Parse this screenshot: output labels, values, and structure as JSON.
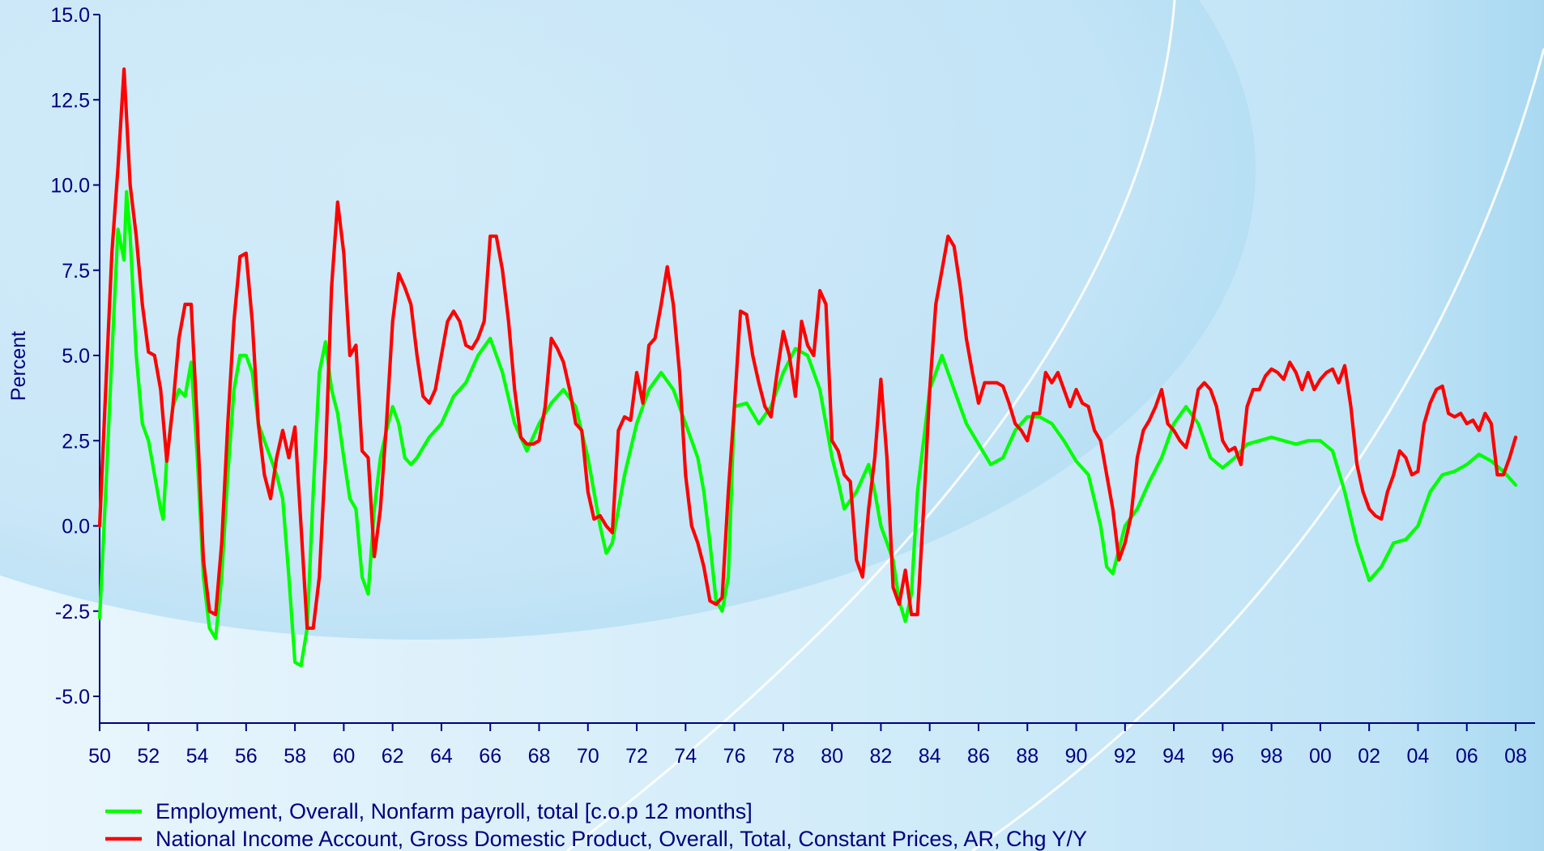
{
  "chart_data": {
    "type": "line",
    "title": "",
    "xlabel": "",
    "ylabel": "Percent",
    "xlim": [
      1950,
      2009
    ],
    "ylim": [
      -5.5,
      15.0
    ],
    "y_ticks": [
      -5.0,
      -2.5,
      0.0,
      2.5,
      5.0,
      7.5,
      10.0,
      12.5,
      15.0
    ],
    "y_tick_labels": [
      "-5.0",
      "-2.5",
      "0.0",
      "2.5",
      "5.0",
      "7.5",
      "10.0",
      "12.5",
      "15.0"
    ],
    "x_ticks": [
      1950,
      1952,
      1954,
      1956,
      1958,
      1960,
      1962,
      1964,
      1966,
      1968,
      1970,
      1972,
      1974,
      1976,
      1978,
      1980,
      1982,
      1984,
      1986,
      1988,
      1990,
      1992,
      1994,
      1996,
      1998,
      2000,
      2002,
      2004,
      2006,
      2008
    ],
    "x_tick_labels": [
      "50",
      "52",
      "54",
      "56",
      "58",
      "60",
      "62",
      "64",
      "66",
      "68",
      "70",
      "72",
      "74",
      "76",
      "78",
      "80",
      "82",
      "84",
      "86",
      "88",
      "90",
      "92",
      "94",
      "96",
      "98",
      "00",
      "02",
      "04",
      "06",
      "08"
    ],
    "grid": false,
    "legend_position": "bottom-left",
    "series": [
      {
        "name": "Employment, Overall, Nonfarm payroll, total [c.o.p 12 months]",
        "color": "#00ff00",
        "x": [
          1950.0,
          1950.25,
          1950.5,
          1950.75,
          1951.0,
          1951.1,
          1951.25,
          1951.5,
          1951.75,
          1952.0,
          1952.25,
          1952.5,
          1952.6,
          1952.75,
          1953.0,
          1953.25,
          1953.5,
          1953.75,
          1954.0,
          1954.25,
          1954.5,
          1954.75,
          1955.0,
          1955.25,
          1955.5,
          1955.75,
          1956.0,
          1956.25,
          1956.5,
          1956.75,
          1957.0,
          1957.25,
          1957.5,
          1957.75,
          1958.0,
          1958.25,
          1958.5,
          1958.75,
          1959.0,
          1959.25,
          1959.5,
          1959.75,
          1960.0,
          1960.25,
          1960.5,
          1960.75,
          1961.0,
          1961.25,
          1961.5,
          1961.75,
          1962.0,
          1962.25,
          1962.5,
          1962.75,
          1963.0,
          1963.5,
          1964.0,
          1964.5,
          1965.0,
          1965.5,
          1966.0,
          1966.5,
          1967.0,
          1967.5,
          1968.0,
          1968.5,
          1969.0,
          1969.5,
          1970.0,
          1970.5,
          1970.75,
          1971.0,
          1971.25,
          1971.5,
          1972.0,
          1972.5,
          1973.0,
          1973.5,
          1974.0,
          1974.5,
          1974.75,
          1975.0,
          1975.25,
          1975.5,
          1975.75,
          1976.0,
          1976.5,
          1977.0,
          1977.5,
          1978.0,
          1978.5,
          1979.0,
          1979.5,
          1980.0,
          1980.25,
          1980.5,
          1981.0,
          1981.5,
          1981.75,
          1982.0,
          1982.5,
          1982.75,
          1983.0,
          1983.25,
          1983.5,
          1984.0,
          1984.5,
          1985.0,
          1985.5,
          1986.0,
          1986.5,
          1987.0,
          1987.5,
          1988.0,
          1988.5,
          1989.0,
          1989.5,
          1990.0,
          1990.5,
          1991.0,
          1991.25,
          1991.5,
          1992.0,
          1992.5,
          1993.0,
          1993.5,
          1994.0,
          1994.5,
          1995.0,
          1995.5,
          1996.0,
          1996.5,
          1997.0,
          1997.5,
          1998.0,
          1998.5,
          1999.0,
          1999.5,
          2000.0,
          2000.5,
          2001.0,
          2001.5,
          2002.0,
          2002.5,
          2003.0,
          2003.5,
          2004.0,
          2004.5,
          2005.0,
          2005.5,
          2006.0,
          2006.5,
          2007.0,
          2007.5,
          2008.0
        ],
        "y": [
          -2.7,
          1.0,
          5.0,
          8.7,
          7.8,
          9.8,
          8.5,
          5.0,
          3.0,
          2.5,
          1.5,
          0.5,
          0.2,
          2.0,
          3.5,
          4.0,
          3.8,
          4.8,
          2.0,
          -1.5,
          -3.0,
          -3.3,
          -1.5,
          1.5,
          4.0,
          5.0,
          5.0,
          4.5,
          3.0,
          2.5,
          2.0,
          1.5,
          0.8,
          -1.5,
          -4.0,
          -4.1,
          -3.0,
          1.0,
          4.5,
          5.4,
          4.0,
          3.3,
          2.0,
          0.8,
          0.5,
          -1.5,
          -2.0,
          0.5,
          2.0,
          2.8,
          3.5,
          3.0,
          2.0,
          1.8,
          2.0,
          2.6,
          3.0,
          3.8,
          4.2,
          5.0,
          5.5,
          4.5,
          3.0,
          2.2,
          3.0,
          3.6,
          4.0,
          3.5,
          2.0,
          0.0,
          -0.8,
          -0.5,
          0.5,
          1.5,
          3.0,
          4.0,
          4.5,
          4.0,
          3.0,
          2.0,
          1.0,
          -0.5,
          -2.2,
          -2.5,
          -1.5,
          3.5,
          3.6,
          3.0,
          3.5,
          4.5,
          5.2,
          5.0,
          4.0,
          2.0,
          1.3,
          0.5,
          1.0,
          1.8,
          1.0,
          0.0,
          -1.0,
          -2.2,
          -2.8,
          -2.0,
          1.0,
          4.0,
          5.0,
          4.0,
          3.0,
          2.4,
          1.8,
          2.0,
          2.8,
          3.2,
          3.2,
          3.0,
          2.5,
          1.9,
          1.5,
          0.0,
          -1.2,
          -1.4,
          0.0,
          0.5,
          1.3,
          2.0,
          3.0,
          3.5,
          3.0,
          2.0,
          1.7,
          2.0,
          2.4,
          2.5,
          2.6,
          2.5,
          2.4,
          2.5,
          2.5,
          2.2,
          1.0,
          -0.5,
          -1.6,
          -1.2,
          -0.5,
          -0.4,
          0.0,
          1.0,
          1.5,
          1.6,
          1.8,
          2.1,
          1.9,
          1.6,
          1.2
        ],
        "_note": ""
      },
      {
        "name": "National Income Account, Gross Domestic Product, Overall, Total, Constant Prices, AR, Chg Y/Y",
        "color": "#ff0000",
        "x": [
          1950.0,
          1950.25,
          1950.5,
          1950.75,
          1951.0,
          1951.25,
          1951.5,
          1951.75,
          1952.0,
          1952.25,
          1952.5,
          1952.75,
          1953.0,
          1953.25,
          1953.5,
          1953.75,
          1954.0,
          1954.25,
          1954.5,
          1954.75,
          1955.0,
          1955.25,
          1955.5,
          1955.75,
          1956.0,
          1956.25,
          1956.5,
          1956.75,
          1957.0,
          1957.25,
          1957.5,
          1957.75,
          1958.0,
          1958.25,
          1958.5,
          1958.75,
          1959.0,
          1959.25,
          1959.5,
          1959.75,
          1960.0,
          1960.25,
          1960.5,
          1960.75,
          1961.0,
          1961.25,
          1961.5,
          1961.75,
          1962.0,
          1962.25,
          1962.5,
          1962.75,
          1963.0,
          1963.25,
          1963.5,
          1963.75,
          1964.0,
          1964.25,
          1964.5,
          1964.75,
          1965.0,
          1965.25,
          1965.5,
          1965.75,
          1966.0,
          1966.25,
          1966.5,
          1966.75,
          1967.0,
          1967.25,
          1967.5,
          1967.75,
          1968.0,
          1968.25,
          1968.5,
          1968.75,
          1969.0,
          1969.25,
          1969.5,
          1969.75,
          1970.0,
          1970.25,
          1970.5,
          1970.75,
          1971.0,
          1971.25,
          1971.5,
          1971.75,
          1972.0,
          1972.25,
          1972.5,
          1972.75,
          1973.0,
          1973.25,
          1973.5,
          1973.75,
          1974.0,
          1974.25,
          1974.5,
          1974.75,
          1975.0,
          1975.25,
          1975.5,
          1975.75,
          1976.0,
          1976.25,
          1976.5,
          1976.75,
          1977.0,
          1977.25,
          1977.5,
          1977.75,
          1978.0,
          1978.25,
          1978.5,
          1978.75,
          1979.0,
          1979.25,
          1979.5,
          1979.75,
          1980.0,
          1980.25,
          1980.5,
          1980.75,
          1981.0,
          1981.25,
          1981.5,
          1981.75,
          1982.0,
          1982.25,
          1982.5,
          1982.75,
          1983.0,
          1983.25,
          1983.5,
          1983.75,
          1984.0,
          1984.25,
          1984.5,
          1984.75,
          1985.0,
          1985.25,
          1985.5,
          1985.75,
          1986.0,
          1986.25,
          1986.5,
          1986.75,
          1987.0,
          1987.25,
          1987.5,
          1987.75,
          1988.0,
          1988.25,
          1988.5,
          1988.75,
          1989.0,
          1989.25,
          1989.5,
          1989.75,
          1990.0,
          1990.25,
          1990.5,
          1990.75,
          1991.0,
          1991.25,
          1991.5,
          1991.75,
          1992.0,
          1992.25,
          1992.5,
          1992.75,
          1993.0,
          1993.25,
          1993.5,
          1993.75,
          1994.0,
          1994.25,
          1994.5,
          1994.75,
          1995.0,
          1995.25,
          1995.5,
          1995.75,
          1996.0,
          1996.25,
          1996.5,
          1996.75,
          1997.0,
          1997.25,
          1997.5,
          1997.75,
          1998.0,
          1998.25,
          1998.5,
          1998.75,
          1999.0,
          1999.25,
          1999.5,
          1999.75,
          2000.0,
          2000.25,
          2000.5,
          2000.75,
          2001.0,
          2001.25,
          2001.5,
          2001.75,
          2002.0,
          2002.25,
          2002.5,
          2002.75,
          2003.0,
          2003.25,
          2003.5,
          2003.75,
          2004.0,
          2004.25,
          2004.5,
          2004.75,
          2005.0,
          2005.25,
          2005.5,
          2005.75,
          2006.0,
          2006.25,
          2006.5,
          2006.75,
          2007.0,
          2007.25,
          2007.5,
          2007.75,
          2008.0
        ],
        "y": [
          0.0,
          4.0,
          8.0,
          10.5,
          13.4,
          10.0,
          8.5,
          6.5,
          5.1,
          5.0,
          4.0,
          1.9,
          3.5,
          5.5,
          6.5,
          6.5,
          3.0,
          -1.0,
          -2.5,
          -2.6,
          -0.5,
          3.0,
          6.0,
          7.9,
          8.0,
          6.0,
          3.0,
          1.5,
          0.8,
          2.0,
          2.8,
          2.0,
          2.9,
          0.0,
          -3.0,
          -3.0,
          -1.5,
          2.0,
          7.0,
          9.5,
          8.0,
          5.0,
          5.3,
          2.2,
          2.0,
          -0.9,
          0.5,
          3.0,
          6.0,
          7.4,
          7.0,
          6.5,
          5.0,
          3.8,
          3.6,
          4.0,
          5.0,
          6.0,
          6.3,
          6.0,
          5.3,
          5.2,
          5.5,
          6.0,
          8.5,
          8.5,
          7.5,
          6.0,
          4.0,
          2.6,
          2.4,
          2.4,
          2.5,
          3.5,
          5.5,
          5.2,
          4.8,
          4.0,
          3.0,
          2.8,
          1.0,
          0.2,
          0.3,
          0.0,
          -0.2,
          2.8,
          3.2,
          3.1,
          4.5,
          3.6,
          5.3,
          5.5,
          6.5,
          7.6,
          6.5,
          4.5,
          1.5,
          0.0,
          -0.5,
          -1.2,
          -2.2,
          -2.3,
          -2.1,
          1.0,
          3.5,
          6.3,
          6.2,
          5.0,
          4.2,
          3.5,
          3.2,
          4.5,
          5.7,
          5.0,
          3.8,
          6.0,
          5.3,
          5.0,
          6.9,
          6.5,
          2.5,
          2.2,
          1.5,
          1.3,
          -1.0,
          -1.5,
          0.5,
          2.0,
          4.3,
          2.0,
          -1.8,
          -2.3,
          -1.3,
          -2.6,
          -2.6,
          0.5,
          4.0,
          6.5,
          7.5,
          8.5,
          8.2,
          7.0,
          5.5,
          4.5,
          3.6,
          4.2,
          4.2,
          4.2,
          4.1,
          3.6,
          3.0,
          2.8,
          2.5,
          3.3,
          3.3,
          4.5,
          4.2,
          4.5,
          4.0,
          3.5,
          4.0,
          3.6,
          3.5,
          2.8,
          2.5,
          1.5,
          0.5,
          -1.0,
          -0.5,
          0.3,
          2.0,
          2.8,
          3.1,
          3.5,
          4.0,
          3.0,
          2.8,
          2.5,
          2.3,
          3.0,
          4.0,
          4.2,
          4.0,
          3.5,
          2.5,
          2.2,
          2.3,
          1.8,
          3.5,
          4.0,
          4.0,
          4.4,
          4.6,
          4.5,
          4.3,
          4.8,
          4.5,
          4.0,
          4.5,
          4.0,
          4.3,
          4.5,
          4.6,
          4.2,
          4.7,
          3.5,
          1.8,
          1.0,
          0.5,
          0.3,
          0.2,
          1.0,
          1.5,
          2.2,
          2.0,
          1.5,
          1.6,
          3.0,
          3.6,
          4.0,
          4.1,
          3.3,
          3.2,
          3.3,
          3.0,
          3.1,
          2.8,
          3.3,
          3.0,
          1.5,
          1.5,
          2.0,
          2.6
        ],
        "_note": ""
      }
    ]
  }
}
